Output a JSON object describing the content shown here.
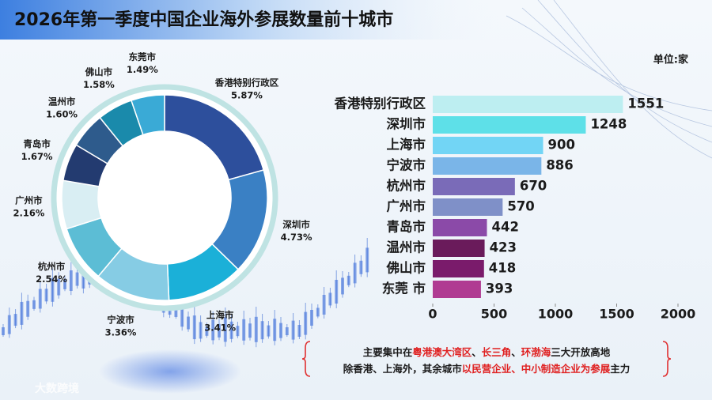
{
  "title": "2026年第一季度中国企业海外参展数量前十城市",
  "chart_data": [
    {
      "type": "donut",
      "categories": [
        "香港特别行政区",
        "深圳市",
        "上海市",
        "宁波市",
        "杭州市",
        "广州市",
        "青岛市",
        "温州市",
        "佛山市",
        "东莞市"
      ],
      "values": [
        5.87,
        4.73,
        3.41,
        3.36,
        2.54,
        2.16,
        1.67,
        1.6,
        1.58,
        1.49
      ],
      "value_labels": [
        "5.87%",
        "4.73%",
        "3.41%",
        "3.36%",
        "2.54%",
        "2.16%",
        "1.67%",
        "1.60%",
        "1.58%",
        "1.49%"
      ],
      "colors": [
        "#2d4f9c",
        "#3a80c4",
        "#1bb0d8",
        "#86cce4",
        "#5cbdd5",
        "#d9eef3",
        "#233b70",
        "#2e5b8c",
        "#1a8aab",
        "#3aaad6"
      ]
    },
    {
      "type": "hbar",
      "unit": "单位:家",
      "categories": [
        "香港特别行政区",
        "深圳市",
        "上海市",
        "宁波市",
        "杭州市",
        "广州市",
        "青岛市",
        "温州市",
        "佛山市",
        "东莞 市"
      ],
      "values": [
        1551,
        1248,
        900,
        886,
        670,
        570,
        442,
        423,
        418,
        393
      ],
      "colors": [
        "#bdeef1",
        "#5ee0e8",
        "#72d5f5",
        "#7ab5e8",
        "#7a6bb8",
        "#7f90c8",
        "#8b4aa8",
        "#6a1b5b",
        "#7a1b6b",
        "#b03b92"
      ],
      "xlim": [
        0,
        2000
      ],
      "xticks": [
        0,
        500,
        1000,
        1500,
        2000
      ]
    }
  ],
  "notes": [
    [
      {
        "text": "主要集中在",
        "color": "#1a1a1a"
      },
      {
        "text": "粤港澳大湾区",
        "color": "#e02020"
      },
      {
        "text": "、",
        "color": "#1a1a1a"
      },
      {
        "text": "长三角",
        "color": "#e02020"
      },
      {
        "text": "、",
        "color": "#1a1a1a"
      },
      {
        "text": "环渤海",
        "color": "#e02020"
      },
      {
        "text": "三大开放高地",
        "color": "#1a1a1a"
      }
    ],
    [
      {
        "text": "除香港、上海外，其余城市",
        "color": "#1a1a1a"
      },
      {
        "text": "以民营企业、中小制造企业为参展",
        "color": "#e02020"
      },
      {
        "text": "主力",
        "color": "#1a1a1a"
      }
    ]
  ],
  "watermark": "大数跨境"
}
